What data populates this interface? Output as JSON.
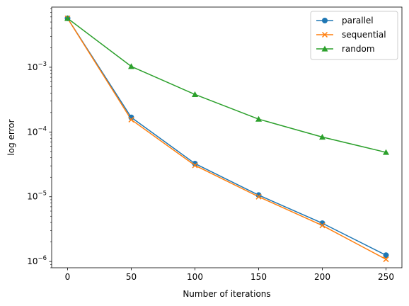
{
  "chart_data": {
    "type": "line",
    "xlabel": "Number of iterations",
    "ylabel": "log error",
    "yscale": "log",
    "xlim": [
      -12.5,
      262.5
    ],
    "ylim": [
      8e-07,
      0.0085
    ],
    "x_ticks": [
      0,
      50,
      100,
      150,
      200,
      250
    ],
    "x_tick_labels": [
      "0",
      "50",
      "100",
      "150",
      "200",
      "250"
    ],
    "y_major_ticks": [
      1e-06,
      1e-05,
      0.0001,
      0.001
    ],
    "y_tick_labels": [
      {
        "base": "10",
        "exp": "−6"
      },
      {
        "base": "10",
        "exp": "−5"
      },
      {
        "base": "10",
        "exp": "−4"
      },
      {
        "base": "10",
        "exp": "−3"
      }
    ],
    "grid": false,
    "legend_position": "top-right",
    "x": [
      0,
      50,
      100,
      150,
      200,
      250
    ],
    "series": [
      {
        "name": "parallel",
        "color": "#1f77b4",
        "marker": "circle",
        "values": [
          0.0057,
          0.000168,
          3.25e-05,
          1.06e-05,
          3.9e-06,
          1.25e-06
        ]
      },
      {
        "name": "sequential",
        "color": "#ff7f0e",
        "marker": "x",
        "values": [
          0.0057,
          0.000155,
          3.05e-05,
          1e-05,
          3.6e-06,
          1.08e-06
        ]
      },
      {
        "name": "random",
        "color": "#2ca02c",
        "marker": "triangle",
        "values": [
          0.0057,
          0.00103,
          0.00038,
          0.000158,
          8.35e-05,
          4.85e-05
        ]
      }
    ]
  }
}
